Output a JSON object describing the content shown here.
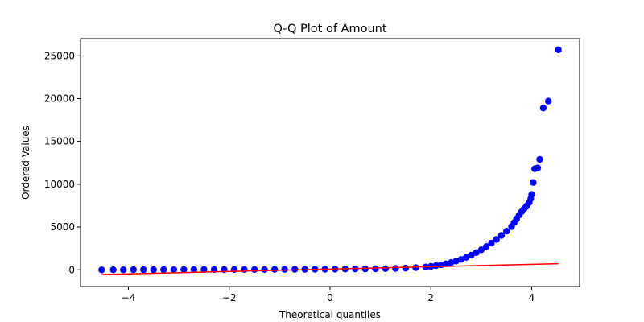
{
  "chart_data": {
    "type": "scatter",
    "title": "Q-Q Plot of Amount",
    "xlabel": "Theoretical quantiles",
    "ylabel": "Ordered Values",
    "xlim": [
      -4.95,
      4.95
    ],
    "ylim": [
      -1950,
      27000
    ],
    "x_ticks": [
      -4,
      -2,
      0,
      2,
      4
    ],
    "y_ticks": [
      0,
      5000,
      10000,
      15000,
      20000,
      25000
    ],
    "x_tick_labels": [
      "−4",
      "−2",
      "0",
      "2",
      "4"
    ],
    "y_tick_labels": [
      "0",
      "5000",
      "10000",
      "15000",
      "20000",
      "25000"
    ],
    "grid": false,
    "series": [
      {
        "kind": "points",
        "color": "#0000ff",
        "points": [
          [
            -4.53,
            0
          ],
          [
            -4.3,
            5
          ],
          [
            -4.1,
            8
          ],
          [
            -3.9,
            12
          ],
          [
            -3.7,
            15
          ],
          [
            -3.5,
            18
          ],
          [
            -3.3,
            20
          ],
          [
            -3.1,
            22
          ],
          [
            -2.9,
            25
          ],
          [
            -2.7,
            28
          ],
          [
            -2.5,
            30
          ],
          [
            -2.3,
            32
          ],
          [
            -2.1,
            35
          ],
          [
            -1.9,
            38
          ],
          [
            -1.7,
            40
          ],
          [
            -1.5,
            43
          ],
          [
            -1.3,
            46
          ],
          [
            -1.1,
            50
          ],
          [
            -0.9,
            54
          ],
          [
            -0.7,
            58
          ],
          [
            -0.5,
            63
          ],
          [
            -0.3,
            68
          ],
          [
            -0.1,
            74
          ],
          [
            0.1,
            80
          ],
          [
            0.3,
            88
          ],
          [
            0.5,
            97
          ],
          [
            0.7,
            108
          ],
          [
            0.9,
            122
          ],
          [
            1.1,
            140
          ],
          [
            1.3,
            165
          ],
          [
            1.5,
            200
          ],
          [
            1.7,
            250
          ],
          [
            1.9,
            330
          ],
          [
            2.0,
            400
          ],
          [
            2.1,
            480
          ],
          [
            2.2,
            580
          ],
          [
            2.3,
            700
          ],
          [
            2.4,
            850
          ],
          [
            2.5,
            1020
          ],
          [
            2.6,
            1220
          ],
          [
            2.7,
            1450
          ],
          [
            2.8,
            1720
          ],
          [
            2.9,
            2020
          ],
          [
            3.0,
            2350
          ],
          [
            3.1,
            2720
          ],
          [
            3.2,
            3120
          ],
          [
            3.3,
            3560
          ],
          [
            3.4,
            4020
          ],
          [
            3.5,
            4520
          ],
          [
            3.6,
            5050
          ],
          [
            3.65,
            5500
          ],
          [
            3.7,
            5950
          ],
          [
            3.75,
            6400
          ],
          [
            3.8,
            6800
          ],
          [
            3.85,
            7150
          ],
          [
            3.9,
            7450
          ],
          [
            3.95,
            7850
          ],
          [
            3.98,
            8300
          ],
          [
            4.0,
            8800
          ],
          [
            4.03,
            10200
          ],
          [
            4.06,
            11800
          ],
          [
            4.12,
            11900
          ],
          [
            4.16,
            12900
          ],
          [
            4.23,
            18900
          ],
          [
            4.33,
            19700
          ],
          [
            4.53,
            25700
          ]
        ]
      },
      {
        "kind": "fit-line",
        "color": "#ff0000",
        "points": [
          [
            -4.53,
            -540
          ],
          [
            4.53,
            720
          ]
        ]
      }
    ]
  }
}
